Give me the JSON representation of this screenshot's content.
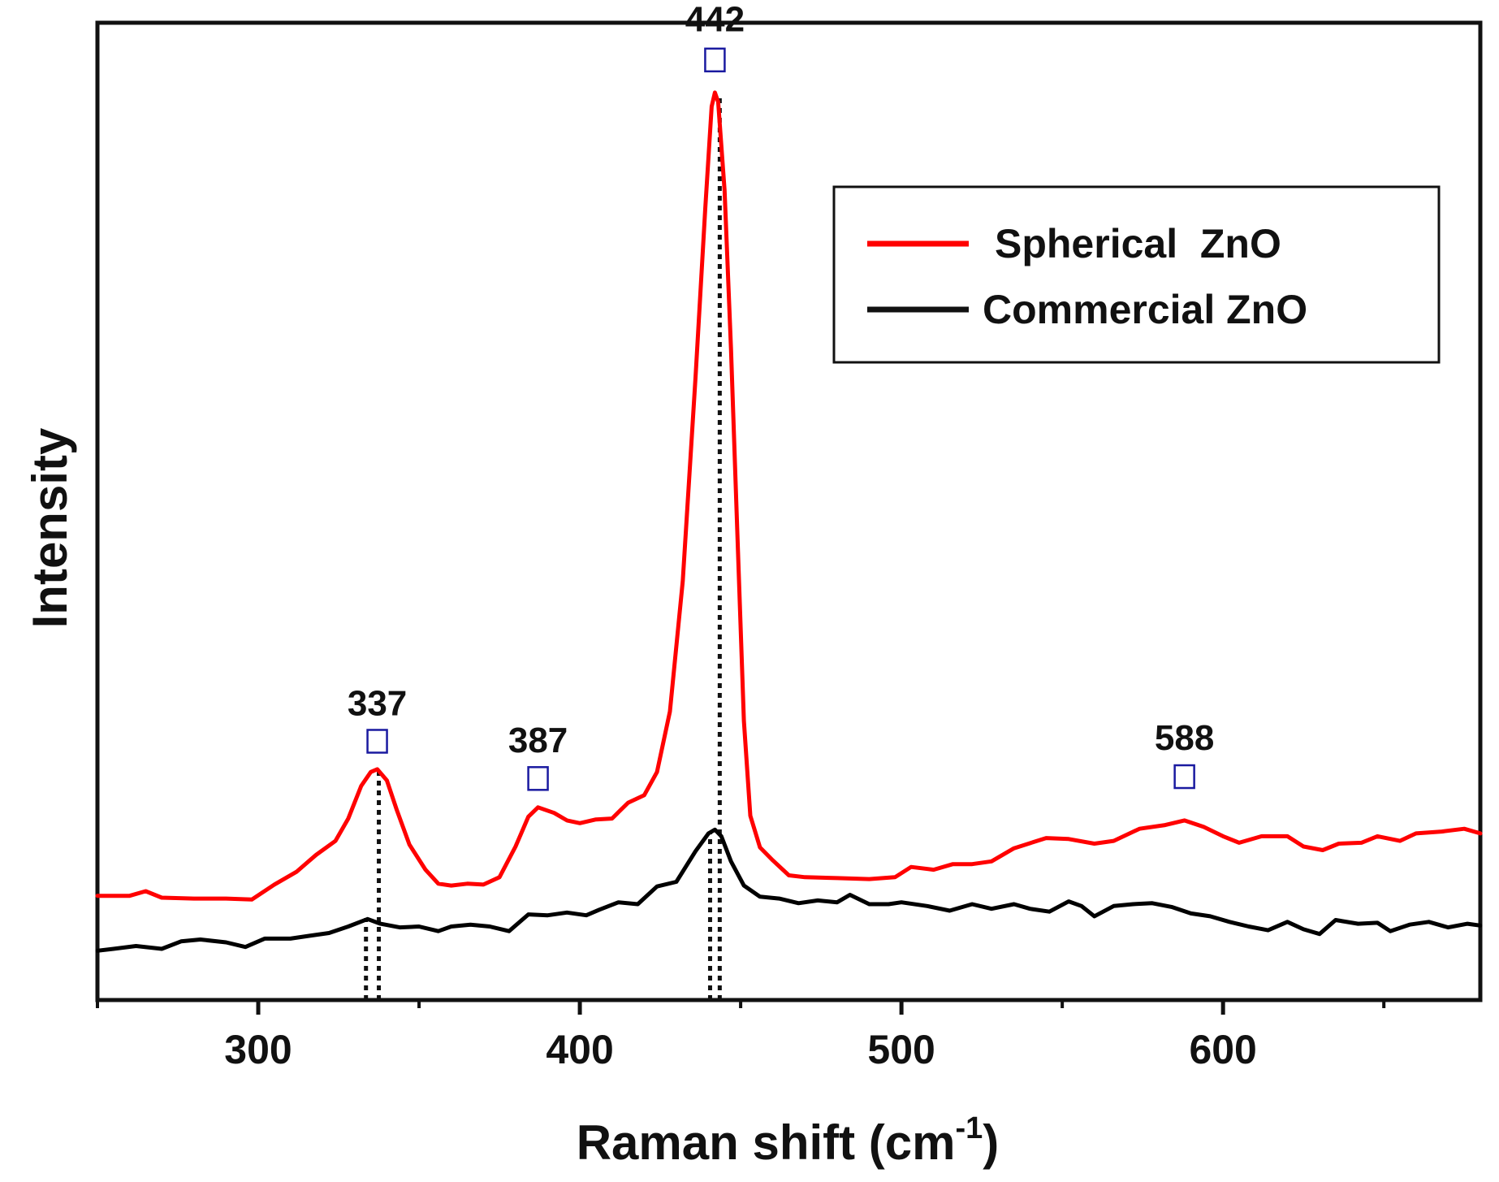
{
  "chart_data": {
    "type": "line",
    "xlabel": "Raman shift (cm",
    "xlabel_sup": "-1",
    "xlabel_end": ")",
    "ylabel": "Intensity",
    "xlim": [
      250,
      680
    ],
    "ylim": [
      0,
      105
    ],
    "xticks_major": [
      300,
      400,
      500,
      600
    ],
    "xticks_minor": [
      250,
      350,
      450,
      550,
      650
    ],
    "yticks": [],
    "grid": false,
    "legend_position": "top-right",
    "series": [
      {
        "name": "Spherical  ZnO",
        "color": "#ff0000",
        "points": [
          [
            250,
            11.2
          ],
          [
            260,
            11.2
          ],
          [
            265,
            11.7
          ],
          [
            270,
            11.0
          ],
          [
            280,
            10.9
          ],
          [
            290,
            10.9
          ],
          [
            298,
            10.8
          ],
          [
            305,
            12.4
          ],
          [
            312,
            13.8
          ],
          [
            318,
            15.6
          ],
          [
            324,
            17.1
          ],
          [
            328,
            19.5
          ],
          [
            332,
            23.0
          ],
          [
            335,
            24.5
          ],
          [
            337,
            24.8
          ],
          [
            340,
            23.6
          ],
          [
            343,
            20.5
          ],
          [
            347,
            16.7
          ],
          [
            352,
            14.0
          ],
          [
            356,
            12.5
          ],
          [
            360,
            12.3
          ],
          [
            365,
            12.5
          ],
          [
            370,
            12.4
          ],
          [
            375,
            13.2
          ],
          [
            380,
            16.5
          ],
          [
            384,
            19.7
          ],
          [
            387,
            20.7
          ],
          [
            392,
            20.1
          ],
          [
            396,
            19.3
          ],
          [
            400,
            19.0
          ],
          [
            405,
            19.4
          ],
          [
            410,
            19.5
          ],
          [
            415,
            21.2
          ],
          [
            420,
            22.0
          ],
          [
            424,
            24.5
          ],
          [
            428,
            31.0
          ],
          [
            432,
            45.0
          ],
          [
            436,
            67.0
          ],
          [
            439,
            85.0
          ],
          [
            441,
            96.0
          ],
          [
            442,
            97.5
          ],
          [
            443,
            96.5
          ],
          [
            445,
            87.0
          ],
          [
            447,
            70.0
          ],
          [
            449,
            50.0
          ],
          [
            451,
            30.0
          ],
          [
            453,
            19.8
          ],
          [
            456,
            16.4
          ],
          [
            460,
            15.0
          ],
          [
            465,
            13.4
          ],
          [
            470,
            13.2
          ],
          [
            480,
            13.1
          ],
          [
            490,
            13.0
          ],
          [
            498,
            13.2
          ],
          [
            503,
            14.3
          ],
          [
            510,
            14.0
          ],
          [
            516,
            14.6
          ],
          [
            522,
            14.6
          ],
          [
            528,
            14.9
          ],
          [
            535,
            16.3
          ],
          [
            545,
            17.4
          ],
          [
            552,
            17.3
          ],
          [
            560,
            16.8
          ],
          [
            566,
            17.1
          ],
          [
            574,
            18.4
          ],
          [
            582,
            18.8
          ],
          [
            588,
            19.3
          ],
          [
            594,
            18.6
          ],
          [
            600,
            17.6
          ],
          [
            605,
            16.9
          ],
          [
            612,
            17.6
          ],
          [
            620,
            17.6
          ],
          [
            625,
            16.5
          ],
          [
            631,
            16.1
          ],
          [
            636,
            16.8
          ],
          [
            643,
            16.9
          ],
          [
            648,
            17.6
          ],
          [
            655,
            17.1
          ],
          [
            660,
            17.9
          ],
          [
            668,
            18.1
          ],
          [
            675,
            18.4
          ],
          [
            680,
            17.9
          ]
        ]
      },
      {
        "name": "Commercial ZnO",
        "color": "#000000",
        "points": [
          [
            250,
            5.3
          ],
          [
            255,
            5.5
          ],
          [
            262,
            5.8
          ],
          [
            270,
            5.5
          ],
          [
            276,
            6.3
          ],
          [
            282,
            6.5
          ],
          [
            290,
            6.2
          ],
          [
            296,
            5.7
          ],
          [
            302,
            6.6
          ],
          [
            310,
            6.6
          ],
          [
            316,
            6.9
          ],
          [
            322,
            7.2
          ],
          [
            328,
            7.9
          ],
          [
            334,
            8.7
          ],
          [
            338,
            8.2
          ],
          [
            344,
            7.8
          ],
          [
            350,
            7.9
          ],
          [
            356,
            7.4
          ],
          [
            360,
            7.9
          ],
          [
            366,
            8.1
          ],
          [
            372,
            7.9
          ],
          [
            378,
            7.4
          ],
          [
            384,
            9.2
          ],
          [
            390,
            9.1
          ],
          [
            396,
            9.4
          ],
          [
            402,
            9.1
          ],
          [
            406,
            9.7
          ],
          [
            412,
            10.5
          ],
          [
            418,
            10.3
          ],
          [
            424,
            12.2
          ],
          [
            430,
            12.7
          ],
          [
            436,
            16.0
          ],
          [
            440,
            17.9
          ],
          [
            442,
            18.3
          ],
          [
            444,
            17.6
          ],
          [
            447,
            14.9
          ],
          [
            451,
            12.3
          ],
          [
            456,
            11.1
          ],
          [
            462,
            10.9
          ],
          [
            468,
            10.4
          ],
          [
            474,
            10.7
          ],
          [
            480,
            10.5
          ],
          [
            484,
            11.3
          ],
          [
            490,
            10.3
          ],
          [
            496,
            10.3
          ],
          [
            500,
            10.5
          ],
          [
            508,
            10.1
          ],
          [
            515,
            9.6
          ],
          [
            522,
            10.3
          ],
          [
            528,
            9.8
          ],
          [
            535,
            10.3
          ],
          [
            540,
            9.8
          ],
          [
            546,
            9.5
          ],
          [
            552,
            10.6
          ],
          [
            556,
            10.1
          ],
          [
            560,
            9.0
          ],
          [
            566,
            10.1
          ],
          [
            572,
            10.3
          ],
          [
            578,
            10.4
          ],
          [
            584,
            10.0
          ],
          [
            590,
            9.3
          ],
          [
            596,
            9.0
          ],
          [
            602,
            8.4
          ],
          [
            608,
            7.9
          ],
          [
            614,
            7.5
          ],
          [
            620,
            8.4
          ],
          [
            625,
            7.6
          ],
          [
            630,
            7.1
          ],
          [
            635,
            8.6
          ],
          [
            642,
            8.2
          ],
          [
            648,
            8.3
          ],
          [
            652,
            7.4
          ],
          [
            658,
            8.1
          ],
          [
            664,
            8.4
          ],
          [
            670,
            7.8
          ],
          [
            676,
            8.2
          ],
          [
            680,
            8.0
          ]
        ]
      }
    ],
    "annotations": [
      {
        "label": "337",
        "x": 337,
        "marker_y": 27.8,
        "text_y": 32.0,
        "dashed_lines": [
          [
            333.5,
            0,
            8.8
          ],
          [
            337.5,
            0,
            24.7
          ]
        ]
      },
      {
        "label": "387",
        "x": 387,
        "marker_y": 23.8,
        "text_y": 28.0,
        "dashed_lines": []
      },
      {
        "label": "442",
        "x": 442,
        "marker_y": 101.0,
        "text_y": 105.5,
        "dashed_lines": [
          [
            440.5,
            0,
            18.0
          ],
          [
            443.5,
            0,
            97.3
          ]
        ]
      },
      {
        "label": "588",
        "x": 588,
        "marker_y": 24.0,
        "text_y": 28.3,
        "dashed_lines": []
      }
    ]
  }
}
